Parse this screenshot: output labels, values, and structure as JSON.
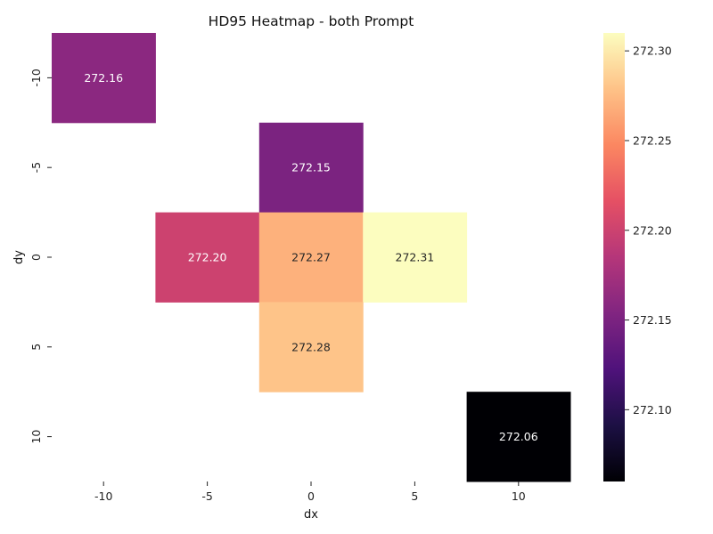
{
  "chart_data": {
    "type": "heatmap",
    "title": "HD95 Heatmap - both Prompt",
    "xlabel": "dx",
    "ylabel": "dy",
    "x_categories": [
      "-10",
      "-5",
      "0",
      "5",
      "10"
    ],
    "y_categories": [
      "-10",
      "-5",
      "0",
      "5",
      "10"
    ],
    "cells": [
      {
        "dx": "-10",
        "dy": "-10",
        "value": 272.16,
        "label": "272.16"
      },
      {
        "dx": "0",
        "dy": "-5",
        "value": 272.15,
        "label": "272.15"
      },
      {
        "dx": "-5",
        "dy": "0",
        "value": 272.2,
        "label": "272.20"
      },
      {
        "dx": "0",
        "dy": "0",
        "value": 272.27,
        "label": "272.27"
      },
      {
        "dx": "5",
        "dy": "0",
        "value": 272.31,
        "label": "272.31"
      },
      {
        "dx": "0",
        "dy": "5",
        "value": 272.28,
        "label": "272.28"
      },
      {
        "dx": "10",
        "dy": "10",
        "value": 272.06,
        "label": "272.06"
      }
    ],
    "colormap": "magma",
    "vmin": 272.06,
    "vmax": 272.31,
    "colorbar_ticks": [
      "272.10",
      "272.15",
      "272.20",
      "272.25",
      "272.30"
    ],
    "grid": false,
    "legend": "colorbar-right"
  }
}
